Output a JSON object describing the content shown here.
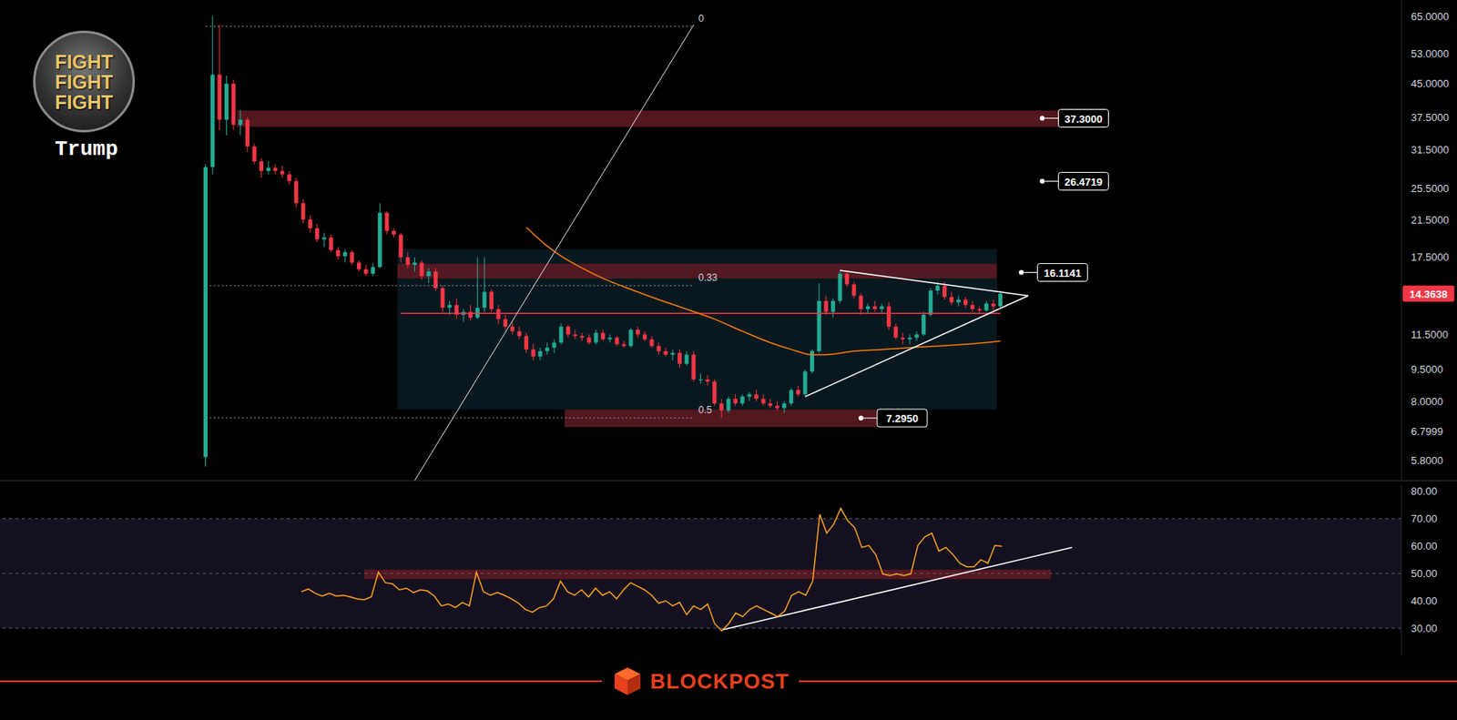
{
  "chart_data": [
    {
      "type": "candlestick",
      "title": "Trump",
      "logo_text": [
        "FIGHT",
        "FIGHT",
        "FIGHT"
      ],
      "watermark": "BLOCKPOST",
      "x": [
        29,
        30,
        31,
        32,
        33,
        34,
        35,
        36,
        37,
        38,
        39,
        40,
        41,
        42,
        43,
        44,
        45,
        46,
        47,
        48,
        49,
        50,
        51,
        52,
        53,
        54,
        55,
        56,
        57,
        58,
        59,
        60,
        61,
        62,
        63,
        64,
        65,
        66,
        67,
        68,
        69,
        70,
        71,
        72,
        73,
        74,
        75,
        76,
        77,
        78,
        79,
        80,
        81,
        82,
        83,
        84,
        85,
        86,
        87,
        88,
        89,
        90,
        91,
        92,
        93,
        94,
        95,
        96,
        97,
        98,
        99,
        100,
        101,
        102,
        103,
        104,
        105,
        106,
        107,
        108,
        109,
        110,
        111,
        112,
        113,
        114,
        115,
        116,
        117,
        118,
        119,
        120,
        121,
        122,
        123,
        124,
        125,
        126,
        127,
        128,
        129,
        130,
        131,
        132,
        133,
        134,
        135,
        136,
        137,
        138,
        139,
        140,
        141,
        142,
        143
      ],
      "open": [
        5.9,
        28.6,
        47.3,
        37,
        45,
        36,
        37,
        32,
        29.5,
        28,
        28.5,
        28,
        27.5,
        26.5,
        23.5,
        21.5,
        20.5,
        19.3,
        19.5,
        18.2,
        17.6,
        18,
        17,
        16.4,
        16,
        16.6,
        22.3,
        20.2,
        19.8,
        17.5,
        16.8,
        17,
        15.8,
        16.2,
        14.8,
        13.3,
        13.5,
        12.8,
        13,
        12.6,
        13.3,
        14.5,
        13.2,
        12.5,
        12,
        11.7,
        11.4,
        10.6,
        10.2,
        10.5,
        10.7,
        11,
        12,
        11.5,
        11.4,
        11.3,
        11,
        11.6,
        11.2,
        11.3,
        10.9,
        10.8,
        11.8,
        11.5,
        11.2,
        10.8,
        10.5,
        10.3,
        10.4,
        9.8,
        10.3,
        9,
        9,
        8.9,
        7.9,
        7.6,
        8.1,
        7.9,
        8.2,
        8.3,
        8.1,
        7.9,
        7.8,
        7.7,
        7.9,
        8.5,
        8.3,
        9.4,
        10.5,
        13.8,
        13,
        13.8,
        16,
        15.1,
        14.2,
        13.2,
        13.4,
        13.2,
        13.4,
        12,
        11.3,
        11.2,
        11.3,
        11.5,
        12.8,
        14.6,
        15,
        14.1,
        13.7,
        13.9,
        13.5,
        13.2,
        13.1,
        13.6,
        13.4
      ],
      "high": [
        29,
        65,
        62,
        47,
        46,
        39,
        37.5,
        32.5,
        30,
        29.5,
        29,
        28.8,
        28,
        27,
        24,
        22,
        21,
        20,
        19.8,
        18.5,
        18.3,
        18.2,
        17.2,
        16.8,
        17,
        23.5,
        22.5,
        20.5,
        20,
        18,
        17.5,
        17.2,
        16.5,
        16.5,
        15,
        13.8,
        14,
        13.2,
        13.5,
        17.5,
        17.5,
        14.7,
        13.5,
        12.8,
        12.3,
        12,
        11.6,
        10.9,
        10.7,
        11,
        11.2,
        12.2,
        12.1,
        11.8,
        11.6,
        11.5,
        11.8,
        11.8,
        11.5,
        11.4,
        11.1,
        11.9,
        12,
        11.7,
        11.4,
        11,
        10.7,
        10.6,
        10.6,
        10.5,
        10.5,
        9.3,
        9.2,
        9,
        8.1,
        8.2,
        8.3,
        8.3,
        8.4,
        8.5,
        8.3,
        8.1,
        8,
        8,
        8.6,
        8.7,
        9.5,
        10.6,
        15.2,
        14.2,
        14,
        16.3,
        16.2,
        15.3,
        14.4,
        13.6,
        13.8,
        13.6,
        13.7,
        12.2,
        11.6,
        11.5,
        11.7,
        13,
        14.8,
        15.3,
        15.3,
        14.5,
        14.2,
        14.1,
        13.8,
        13.4,
        13.8,
        13.9,
        14.6
      ],
      "low": [
        5.6,
        27.5,
        35,
        34,
        35,
        34,
        31,
        29,
        27,
        27.5,
        27.5,
        27,
        26,
        23,
        21,
        20,
        19,
        18.5,
        18,
        17.3,
        17,
        16.8,
        16.2,
        15.8,
        15.8,
        16.5,
        19.8,
        19.5,
        17,
        16.5,
        16.2,
        15.5,
        15.2,
        14.6,
        13,
        12.8,
        12.5,
        12.3,
        12.4,
        12.5,
        13,
        13,
        12.2,
        11.8,
        11.5,
        11.2,
        10.4,
        10,
        10,
        10.3,
        10.4,
        10.9,
        11.3,
        11.2,
        11.1,
        10.9,
        10.9,
        11.1,
        11,
        10.8,
        10.7,
        10.7,
        11.3,
        11.1,
        10.7,
        10.3,
        10.2,
        10,
        9.6,
        9.7,
        8.9,
        8.8,
        8.7,
        7.8,
        7.3,
        7.5,
        7.8,
        7.8,
        8,
        8,
        7.8,
        7.7,
        7.6,
        7.5,
        7.8,
        8.2,
        8.2,
        9.3,
        10.4,
        12.8,
        12.6,
        13.6,
        14.9,
        14,
        12.8,
        12.9,
        13,
        12.9,
        11.8,
        11.2,
        10.9,
        10.9,
        11.1,
        11.4,
        12.7,
        14.3,
        13.9,
        13.5,
        13.4,
        13.3,
        13,
        12.9,
        13,
        13.1,
        13.3
      ],
      "close": [
        28.6,
        47.3,
        37,
        45,
        36,
        37,
        32,
        29.5,
        28,
        28.5,
        28,
        27.5,
        26.5,
        23.5,
        21.5,
        20.5,
        19.3,
        19.5,
        18.2,
        17.6,
        18,
        17,
        16.4,
        16,
        16.6,
        22.3,
        20.2,
        19.8,
        17.5,
        16.8,
        17,
        15.8,
        16.2,
        14.8,
        13.3,
        13.5,
        12.8,
        13,
        12.6,
        13.3,
        14.5,
        13.2,
        12.5,
        12,
        11.7,
        11.4,
        10.6,
        10.2,
        10.5,
        10.7,
        11,
        12,
        11.5,
        11.4,
        11.3,
        11,
        11.6,
        11.2,
        11.3,
        10.9,
        10.8,
        11.8,
        11.5,
        11.2,
        10.8,
        10.5,
        10.3,
        10.4,
        9.8,
        10.3,
        9,
        9,
        8.9,
        7.9,
        7.6,
        8.1,
        7.9,
        8.2,
        8.3,
        8.1,
        7.9,
        7.8,
        7.7,
        7.9,
        8.5,
        8.3,
        9.4,
        10.5,
        13.8,
        13,
        13.8,
        16,
        15.1,
        14.2,
        13.2,
        13.4,
        13.2,
        13.4,
        12,
        11.3,
        11.2,
        11.3,
        11.5,
        12.8,
        14.6,
        15,
        14.1,
        13.7,
        13.9,
        13.5,
        13.2,
        13.1,
        13.6,
        13.4,
        14.3638
      ],
      "xlim": [
        0,
        200
      ],
      "ylim": [
        5.2,
        71
      ],
      "log": "y",
      "grid": false,
      "tick_labels": "y",
      "yticks": [
        {
          "value": 65,
          "label": "65.0000"
        },
        {
          "value": 53,
          "label": "53.0000"
        },
        {
          "value": 45,
          "label": "45.0000"
        },
        {
          "value": 37.5,
          "label": "37.5000"
        },
        {
          "value": 31.5,
          "label": "31.5000"
        },
        {
          "value": 25.5,
          "label": "25.5000"
        },
        {
          "value": 21.5,
          "label": "21.5000"
        },
        {
          "value": 17.5,
          "label": "17.5000"
        },
        {
          "value": 11.5,
          "label": "11.5000"
        },
        {
          "value": 9.5,
          "label": "9.5000"
        },
        {
          "value": 8,
          "label": "8.0000"
        },
        6.7999,
        {
          "value": 5.8,
          "label": "5.8000"
        }
      ],
      "moving_average": {
        "x": [
          75,
          78,
          80,
          83,
          86,
          90,
          94,
          98,
          102,
          106,
          110,
          113,
          116,
          118,
          122,
          126,
          130,
          134,
          138,
          143
        ],
        "values": [
          20.6,
          18.6,
          17.6,
          16.5,
          15.6,
          14.7,
          13.9,
          13.2,
          12.5,
          11.7,
          11.0,
          10.6,
          10.3,
          10.3,
          10.5,
          10.6,
          10.7,
          10.8,
          10.9,
          11.1
        ],
        "color": "#f57c00"
      },
      "last_price": 14.3638,
      "price_labels": [
        {
          "x": 149,
          "value": 37.3,
          "label": "37.3000"
        },
        {
          "x": 149,
          "value": 26.4719,
          "label": "26.4719"
        },
        {
          "x": 146,
          "value": 16.1141,
          "label": "16.1141"
        },
        {
          "x": 123,
          "value": 7.295,
          "label": "7.2950"
        }
      ],
      "zones": [
        {
          "x": [
            34,
            158
          ],
          "y": [
            35.6,
            38.9
          ]
        },
        {
          "x": [
            57,
            142
          ],
          "y": [
            15.6,
            16.9
          ]
        },
        {
          "x": [
            81,
            125
          ],
          "y": [
            6.95,
            7.65
          ]
        }
      ],
      "range_box": {
        "x": [
          57,
          142
        ],
        "y": [
          7.65,
          18.3
        ]
      },
      "poc": {
        "x": [
          57,
          143
        ],
        "value": 12.9
      },
      "fib_levels": [
        {
          "label": "0",
          "value": 61.5
        },
        {
          "label": "0.33",
          "value": 15.0
        },
        {
          "label": "0.5",
          "value": 7.3
        }
      ],
      "fib_x": [
        29,
        99
      ],
      "fib_line": {
        "x": [
          59,
          99
        ],
        "y": [
          5.2,
          62
        ]
      },
      "triangle": [
        {
          "x": [
            120,
            147
          ],
          "y": [
            16.3,
            14.2
          ]
        },
        {
          "x": [
            115,
            147
          ],
          "y": [
            8.2,
            14.2
          ]
        }
      ]
    },
    {
      "type": "line",
      "color": "#f7a21b",
      "x": [
        43,
        44,
        45,
        46,
        47,
        48,
        49,
        50,
        51,
        52,
        53,
        54,
        55,
        56,
        57,
        58,
        59,
        60,
        61,
        62,
        63,
        64,
        65,
        66,
        67,
        68,
        69,
        70,
        71,
        72,
        73,
        74,
        75,
        76,
        77,
        78,
        79,
        80,
        81,
        82,
        83,
        84,
        85,
        86,
        87,
        88,
        89,
        90,
        91,
        92,
        93,
        94,
        95,
        96,
        97,
        98,
        99,
        100,
        101,
        102,
        103,
        104,
        105,
        106,
        107,
        108,
        109,
        110,
        111,
        112,
        113,
        114,
        115,
        116,
        117,
        118,
        119,
        120,
        121,
        122,
        123,
        124,
        125,
        126,
        127,
        128,
        129,
        130,
        131,
        132,
        133,
        134,
        135,
        136,
        137,
        138,
        139,
        140,
        141,
        142,
        143
      ],
      "values": [
        43.3,
        44.3,
        42.7,
        41.7,
        42.7,
        41.7,
        42,
        41.4,
        40.7,
        40.4,
        41.4,
        50.5,
        46.6,
        46.2,
        44,
        44.6,
        43,
        44,
        43.6,
        41.7,
        38.1,
        38.8,
        37.5,
        39.4,
        38.1,
        50.5,
        43.3,
        42,
        43,
        42,
        40.7,
        39.1,
        36.8,
        35.8,
        37.5,
        38.1,
        40.7,
        47.2,
        43.3,
        42,
        44,
        41.4,
        44.6,
        42,
        43.3,
        40.7,
        44,
        46.6,
        45.3,
        44,
        42,
        39.1,
        40,
        38.1,
        39.4,
        34.9,
        38.1,
        36.8,
        38.8,
        31.6,
        29,
        31.6,
        35.5,
        34.2,
        36.8,
        38.1,
        36.8,
        35.5,
        34.2,
        36.2,
        42,
        43.3,
        42,
        47.2,
        71.6,
        64.7,
        68,
        73.8,
        69.3,
        66.7,
        59.5,
        60.2,
        56.9,
        49.8,
        49.2,
        49.8,
        49.2,
        49.8,
        60.2,
        63.4,
        64.7,
        58.2,
        59.5,
        56.9,
        53.7,
        52.4,
        52.4,
        55,
        53.7,
        60.2,
        59.9
      ],
      "xlim": [
        0,
        200
      ],
      "ylim": [
        20,
        82
      ],
      "grid": false,
      "tick_labels": "y",
      "yticks": [
        {
          "value": 80,
          "label": "80.00"
        },
        {
          "value": 70,
          "label": "70.00"
        },
        {
          "value": 60,
          "label": "60.00"
        },
        {
          "value": 50,
          "label": "50.00"
        },
        {
          "value": 40,
          "label": "40.00"
        },
        {
          "value": 30,
          "label": "30.00"
        }
      ],
      "bands": [
        30,
        70
      ],
      "levels": [
        30,
        50,
        70
      ],
      "zone": {
        "x": [
          52,
          150
        ],
        "y": [
          47.9,
          51.4
        ]
      },
      "trendline": {
        "x": [
          103,
          153
        ],
        "y": [
          29.3,
          59.5
        ]
      }
    }
  ]
}
